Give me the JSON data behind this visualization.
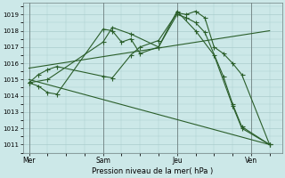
{
  "bg_color": "#cce8e8",
  "grid_color": "#aacccc",
  "line_color": "#2a5e2a",
  "marker_color": "#2a5e2a",
  "xlabel_label": "Pression niveau de la mer( hPa )",
  "xlabel_ticks": [
    "Mer",
    "Sam",
    "Jeu",
    "Ven"
  ],
  "xlabel_tick_positions": [
    0,
    24,
    48,
    72
  ],
  "ylim": [
    1010.5,
    1019.7
  ],
  "xlim": [
    -2,
    82
  ],
  "yticks": [
    1011,
    1012,
    1013,
    1014,
    1015,
    1016,
    1017,
    1018,
    1019
  ],
  "vlines": [
    0,
    24,
    48,
    72
  ],
  "series1_x": [
    0,
    3,
    6,
    9,
    24,
    27,
    33,
    36,
    42,
    48,
    51,
    54,
    57,
    60,
    63,
    66,
    69,
    78
  ],
  "series1_y": [
    1014.8,
    1015.3,
    1015.6,
    1015.8,
    1015.2,
    1015.1,
    1016.5,
    1017.0,
    1017.4,
    1019.1,
    1019.0,
    1019.2,
    1018.8,
    1017.0,
    1016.6,
    1016.0,
    1015.3,
    1011.0
  ],
  "series2_x": [
    0,
    3,
    6,
    9,
    24,
    27,
    30,
    33,
    36,
    42,
    48,
    51,
    54,
    57,
    63,
    66,
    69,
    78
  ],
  "series2_y": [
    1014.8,
    1014.6,
    1014.2,
    1014.1,
    1018.1,
    1018.0,
    1017.3,
    1017.5,
    1016.6,
    1017.0,
    1019.0,
    1018.8,
    1018.5,
    1017.9,
    1015.2,
    1013.5,
    1012.1,
    1011.0
  ],
  "series3_x": [
    0,
    6,
    24,
    27,
    33,
    42,
    48,
    54,
    60,
    66,
    69,
    78
  ],
  "series3_y": [
    1014.8,
    1015.0,
    1017.3,
    1018.2,
    1017.8,
    1017.0,
    1019.2,
    1018.0,
    1016.5,
    1013.4,
    1012.0,
    1011.0
  ],
  "series4_x": [
    0,
    78
  ],
  "series4_y": [
    1015.0,
    1011.0
  ],
  "series5_x": [
    0,
    78
  ],
  "series5_y": [
    1015.7,
    1018.0
  ]
}
